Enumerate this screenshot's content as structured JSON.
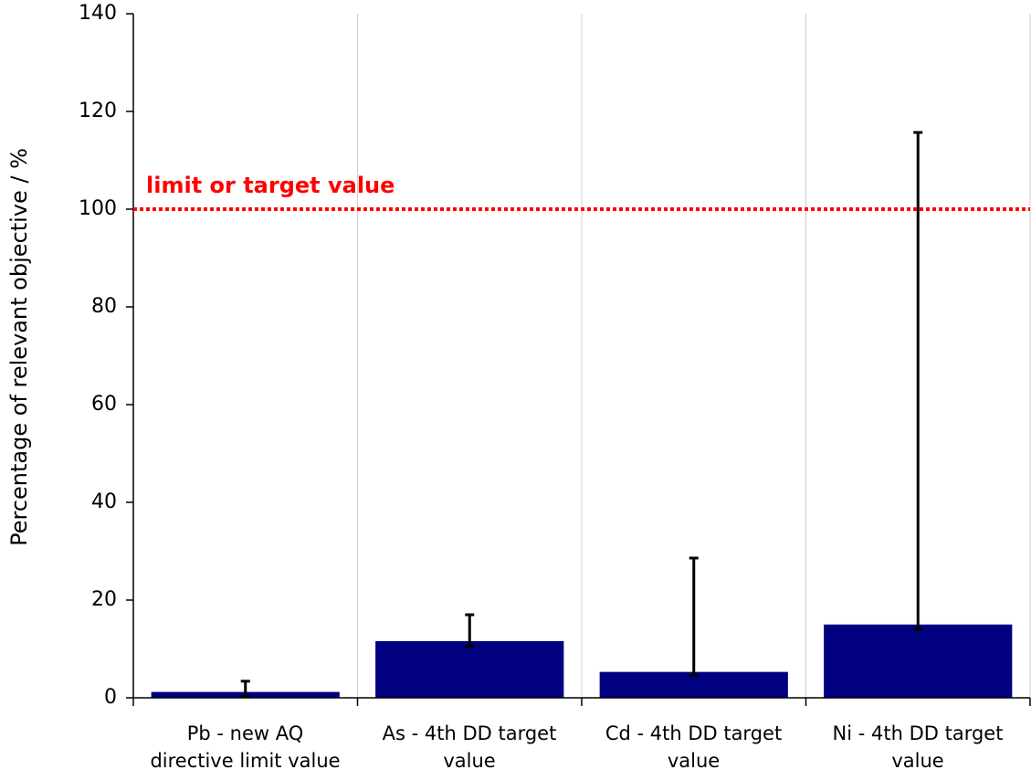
{
  "chart_data": {
    "type": "bar",
    "y_label": "Percentage of relevant objective / %",
    "categories": [
      [
        "Pb - new AQ",
        "directive limit value"
      ],
      [
        "As - 4th DD target",
        "value"
      ],
      [
        "Cd - 4th DD target",
        "value"
      ],
      [
        "Ni - 4th DD target",
        "value"
      ]
    ],
    "values": [
      1.2,
      11.6,
      5.3,
      15
    ],
    "error_low": [
      0.3,
      10.5,
      4.6,
      14
    ],
    "error_high": [
      3.4,
      17,
      28.6,
      115.7
    ],
    "color": "#000080",
    "ylim": [
      0,
      140
    ],
    "yticks": [
      0,
      20,
      40,
      60,
      80,
      100,
      120,
      140
    ],
    "grid": true,
    "reference_line": {
      "value": 100,
      "label": "limit or target value",
      "color": "#ff0000"
    }
  }
}
